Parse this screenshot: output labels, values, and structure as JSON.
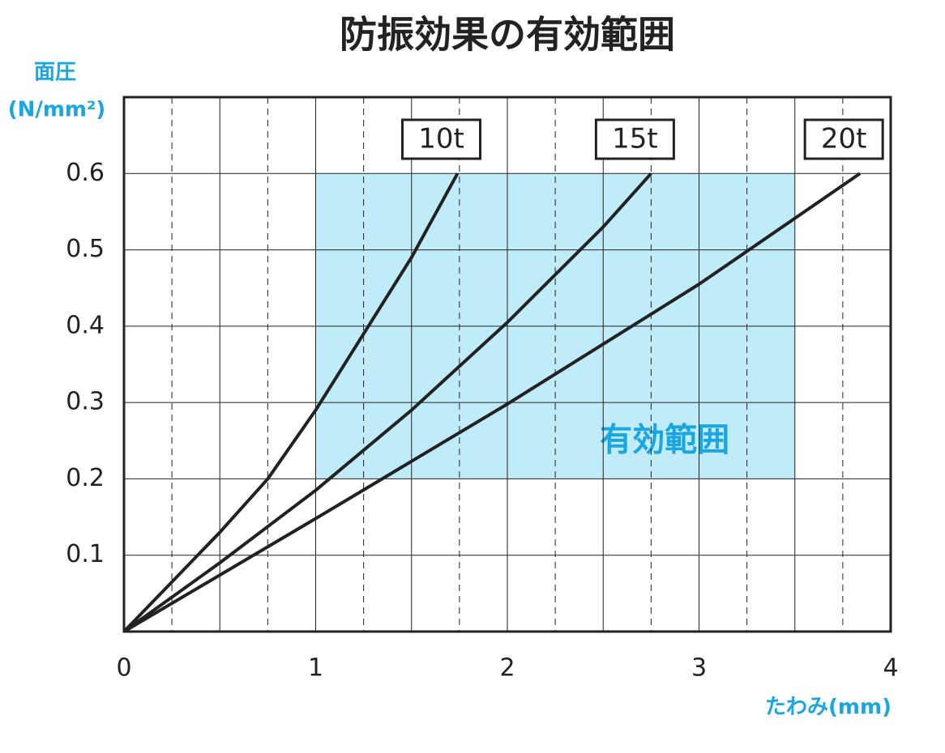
{
  "chart_data": {
    "type": "line",
    "title": "防振効果の有効範囲",
    "y_label": [
      "面圧",
      "(N/mm²)"
    ],
    "x_label": "たわみ(mm)",
    "xlim": [
      0,
      4
    ],
    "ylim": [
      0,
      0.7
    ],
    "xticks": [
      0,
      1,
      2,
      3,
      4
    ],
    "yticks": [
      0.1,
      0.2,
      0.3,
      0.4,
      0.5,
      0.6
    ],
    "xgrid": [
      0.5,
      1,
      1.5,
      2,
      2.5,
      3,
      3.5
    ],
    "xgrid_minor": [
      0.25,
      0.75,
      1.25,
      1.75,
      2.25,
      2.75,
      3.25,
      3.75
    ],
    "grid": true,
    "region": {
      "label": "有効範囲",
      "x": [
        1,
        3.5
      ],
      "y": [
        0.2,
        0.6
      ],
      "color": "#c0ebf8",
      "label_color": "#1aa6e0"
    },
    "series": [
      {
        "name": "10t",
        "color": "#222222",
        "x": [
          0,
          0.25,
          0.5,
          0.75,
          1,
          1.25,
          1.5,
          1.74
        ],
        "values": [
          0,
          0.065,
          0.13,
          0.2,
          0.29,
          0.39,
          0.49,
          0.6
        ]
      },
      {
        "name": "15t",
        "color": "#222222",
        "x": [
          0,
          0.5,
          1,
          1.5,
          2,
          2.5,
          2.75
        ],
        "values": [
          0,
          0.09,
          0.185,
          0.29,
          0.405,
          0.53,
          0.6
        ]
      },
      {
        "name": "20t",
        "color": "#222222",
        "x": [
          0,
          1,
          2,
          3,
          3.84
        ],
        "values": [
          0,
          0.148,
          0.298,
          0.455,
          0.6
        ]
      }
    ]
  }
}
